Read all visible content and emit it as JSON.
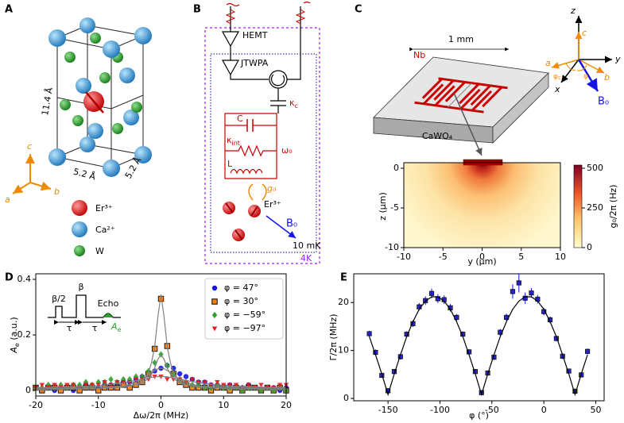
{
  "panel_labels": [
    "A",
    "B",
    "C",
    "D",
    "E"
  ],
  "A": {
    "lattice_c": "11.4 Å",
    "lattice_a": "5.2 Å",
    "lattice_b": "5.2 Å",
    "axes": [
      "c",
      "a",
      "b"
    ],
    "legend": [
      "Er³⁺",
      "Ca²⁺",
      "W"
    ]
  },
  "B": {
    "hemt": "HEMT",
    "jtwpa": "JTWPA",
    "kappa_c": {
      "main": "κ",
      "sub": "c"
    },
    "cap": "C",
    "kappa_int": {
      "main": "κ",
      "sub": "int"
    },
    "omega": "ω₀",
    "inductor": "L",
    "coupling": "g₀",
    "ion": "Er³⁺",
    "field": "B₀",
    "temp_low": "10 mK",
    "temp_high": "4K"
  },
  "C": {
    "metal": "Nb",
    "scale": "1 mm",
    "substrate": "CaWO₄",
    "axes": [
      "z",
      "y",
      "x",
      "c",
      "a",
      "b",
      "φ",
      "B₀"
    ],
    "phi_c": {
      "main": "φ",
      "sub": "c"
    },
    "map": {
      "xlabel": "y (μm)",
      "ylabel": "z (μm)",
      "xlim": [
        -10,
        10
      ],
      "ylim": [
        -10,
        0.7
      ],
      "xticks": [
        -10,
        -5,
        0,
        5,
        10
      ],
      "yticks": [
        -10,
        -5,
        0
      ],
      "colorbar": {
        "label": "g₀/2π (Hz)",
        "lim": [
          0,
          520
        ],
        "ticks": [
          0,
          250,
          500
        ]
      }
    }
  },
  "chart_data": [
    {
      "type": "scatter",
      "xlabel": "Δω/2π (MHz)",
      "ylabel": {
        "main": "A",
        "sub": "e",
        "rest": " (a.u.)"
      },
      "xlim": [
        -20,
        20
      ],
      "ylim": [
        -0.02,
        0.42
      ],
      "xticks": [
        -20,
        -10,
        0,
        10,
        20
      ],
      "yticks": [
        0,
        0.2,
        0.4
      ],
      "legend": "upper right",
      "inset": {
        "pulse1": "β/2",
        "pulse2": "β",
        "echo": "Echo",
        "delay": "τ",
        "amplitude": {
          "main": "A",
          "sub": "e"
        }
      },
      "x": [
        -20,
        -19,
        -18,
        -17,
        -16,
        -15,
        -14,
        -13,
        -12,
        -11,
        -10,
        -9,
        -8,
        -7,
        -6,
        -5,
        -4,
        -3,
        -2,
        -1,
        0,
        1,
        2,
        3,
        4,
        5,
        6,
        7,
        8,
        9,
        10,
        11,
        12,
        13,
        14,
        15,
        16,
        17,
        18,
        19,
        20
      ],
      "fit_x": [
        -20,
        -10,
        -6,
        -4,
        -3,
        -2,
        -1.5,
        -1,
        -0.5,
        0,
        0.5,
        1,
        1.5,
        2,
        3,
        4,
        6,
        10,
        20
      ],
      "fit_color": "#808080",
      "series": [
        {
          "name": "φ = 47°",
          "color": "#1414e6",
          "marker": "circle",
          "values": [
            0.01,
            0.0,
            0.01,
            0.0,
            0.01,
            0.01,
            0.0,
            0.01,
            0.02,
            0.01,
            0.01,
            0.02,
            0.02,
            0.02,
            0.03,
            0.03,
            0.04,
            0.05,
            0.06,
            0.07,
            0.08,
            0.09,
            0.08,
            0.06,
            0.05,
            0.04,
            0.03,
            0.03,
            0.02,
            0.02,
            0.01,
            0.02,
            0.01,
            0.01,
            0.02,
            0.01,
            0.0,
            0.01,
            0.01,
            0.0,
            0.01
          ],
          "fit": [
            0.002,
            0.007,
            0.016,
            0.029,
            0.04,
            0.055,
            0.064,
            0.072,
            0.078,
            0.08,
            0.078,
            0.072,
            0.064,
            0.055,
            0.04,
            0.029,
            0.016,
            0.007,
            0.002
          ]
        },
        {
          "name": "φ = 30°",
          "color": "#ff7f0e",
          "marker": "square",
          "values": [
            0.01,
            0.0,
            0.01,
            0.01,
            0.0,
            0.01,
            0.01,
            0.0,
            0.01,
            0.01,
            0.0,
            0.01,
            0.01,
            0.01,
            0.02,
            0.01,
            0.02,
            0.03,
            0.06,
            0.15,
            0.33,
            0.16,
            0.06,
            0.03,
            0.02,
            0.01,
            0.01,
            0.01,
            0.0,
            0.01,
            0.01,
            0.0,
            0.01,
            0.0,
            0.01,
            0.01,
            0.0,
            0.01,
            0.0,
            0.01,
            0.0
          ],
          "fit": [
            0.006,
            0.008,
            0.012,
            0.021,
            0.033,
            0.064,
            0.101,
            0.157,
            0.264,
            0.345,
            0.264,
            0.157,
            0.101,
            0.064,
            0.033,
            0.021,
            0.012,
            0.008,
            0.006
          ]
        },
        {
          "name": "φ = −59°",
          "color": "#2ca02c",
          "marker": "diamond",
          "values": [
            0.01,
            0.01,
            0.02,
            0.01,
            0.02,
            0.01,
            0.02,
            0.02,
            0.03,
            0.02,
            0.03,
            0.03,
            0.04,
            0.03,
            0.04,
            0.04,
            0.05,
            0.05,
            0.07,
            0.1,
            0.13,
            0.09,
            0.06,
            0.04,
            0.03,
            0.02,
            0.02,
            0.01,
            0.01,
            0.02,
            0.01,
            0.01,
            0.01,
            0.0,
            0.01,
            0.01,
            0.0,
            0.01,
            0.0,
            0.01,
            0.0
          ],
          "fit": [
            0.01,
            0.012,
            0.015,
            0.02,
            0.027,
            0.043,
            0.059,
            0.081,
            0.112,
            0.13,
            0.112,
            0.081,
            0.059,
            0.043,
            0.027,
            0.02,
            0.015,
            0.012,
            0.01
          ]
        },
        {
          "name": "φ = −97°",
          "color": "#e8141a",
          "marker": "triangle-down",
          "values": [
            0.01,
            0.02,
            0.01,
            0.02,
            0.01,
            0.02,
            0.02,
            0.01,
            0.02,
            0.02,
            0.02,
            0.03,
            0.02,
            0.03,
            0.03,
            0.03,
            0.04,
            0.04,
            0.04,
            0.05,
            0.05,
            0.04,
            0.04,
            0.04,
            0.03,
            0.04,
            0.03,
            0.03,
            0.02,
            0.03,
            0.02,
            0.02,
            0.02,
            0.01,
            0.02,
            0.01,
            0.02,
            0.01,
            0.01,
            0.02,
            0.02
          ],
          "fit": [
            0.009,
            0.017,
            0.028,
            0.036,
            0.041,
            0.045,
            0.047,
            0.049,
            0.05,
            0.05,
            0.05,
            0.049,
            0.047,
            0.045,
            0.041,
            0.036,
            0.028,
            0.017,
            0.009
          ]
        }
      ]
    },
    {
      "type": "scatter",
      "xlabel": "φ (°)",
      "ylabel": "Γ/2π (MHz)",
      "xlim": [
        -183,
        58
      ],
      "ylim": [
        -0.5,
        26
      ],
      "xticks": [
        -150,
        -100,
        -50,
        0,
        50
      ],
      "yticks": [
        0,
        10,
        20
      ],
      "x": [
        -168,
        -162,
        -156,
        -150,
        -144,
        -138,
        -132,
        -126,
        -120,
        -114,
        -108,
        -102,
        -96,
        -90,
        -84,
        -78,
        -72,
        -66,
        -60,
        -54,
        -48,
        -42,
        -36,
        -30,
        -24,
        -18,
        -12,
        -6,
        0,
        6,
        12,
        18,
        24,
        30,
        36,
        42
      ],
      "series": [
        {
          "color": "#1414e6",
          "marker": "square",
          "values": [
            13.5,
            9.6,
            4.8,
            1.6,
            5.6,
            8.7,
            13.4,
            15.6,
            19.1,
            20.4,
            21.9,
            20.8,
            20.6,
            18.9,
            16.9,
            13.4,
            9.7,
            5.6,
            1.2,
            5.3,
            8.6,
            13.8,
            16.9,
            22.3,
            24.1,
            20.9,
            22.0,
            20.7,
            18.1,
            16.4,
            12.5,
            8.8,
            5.7,
            1.5,
            4.9,
            9.8
          ],
          "errors": [
            0.6,
            0.6,
            0.5,
            0.5,
            0.5,
            0.6,
            0.6,
            0.7,
            0.8,
            0.9,
            1.0,
            0.9,
            0.9,
            0.8,
            0.7,
            0.6,
            0.6,
            0.5,
            0.5,
            0.5,
            0.6,
            0.7,
            0.8,
            1.5,
            2.0,
            1.2,
            1.0,
            0.9,
            0.8,
            0.7,
            0.6,
            0.6,
            0.5,
            0.5,
            0.5,
            0.6
          ]
        }
      ],
      "fit": {
        "color": "#000000",
        "values": [
          12.9,
          9.1,
          5.1,
          0.8,
          5.1,
          9.1,
          12.9,
          16.0,
          18.6,
          20.3,
          21.2,
          21.2,
          20.3,
          18.6,
          16.0,
          12.9,
          9.1,
          5.1,
          0.8,
          5.1,
          9.1,
          12.9,
          16.0,
          18.6,
          20.3,
          21.2,
          21.2,
          20.3,
          18.6,
          16.0,
          12.9,
          9.1,
          5.1,
          0.8,
          5.1,
          9.1
        ]
      }
    }
  ]
}
